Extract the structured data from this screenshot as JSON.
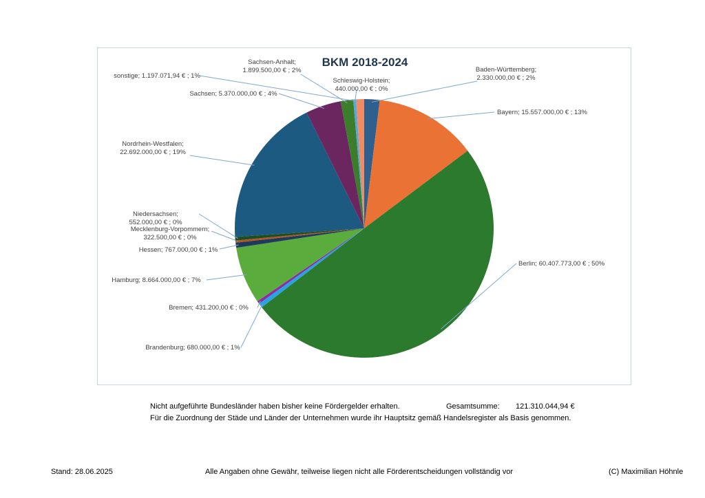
{
  "chart_data": {
    "type": "pie",
    "title": "BKM 2018-2024",
    "slices": [
      {
        "name": "Baden-Württemberg",
        "value": 2330000.0,
        "value_text": "2.330.000,00 €",
        "percent": "2%",
        "color": "#2f5f8c"
      },
      {
        "name": "Bayern",
        "value": 15557000.0,
        "value_text": "15.557.000,00 €",
        "percent": "13%",
        "color": "#ea7234"
      },
      {
        "name": "Berlin",
        "value": 60407773.0,
        "value_text": "60.407.773,00 €",
        "percent": "50%",
        "color": "#2c7a2e"
      },
      {
        "name": "Brandenburg",
        "value": 680000.0,
        "value_text": "680.000,00 €",
        "percent": "1%",
        "color": "#2ba3e0"
      },
      {
        "name": "Bremen",
        "value": 431200.0,
        "value_text": "431.200,00 €",
        "percent": "0%",
        "color": "#8e2aa6"
      },
      {
        "name": "Hamburg",
        "value": 8664000.0,
        "value_text": "8.664.000,00 €",
        "percent": "7%",
        "color": "#5aac3c"
      },
      {
        "name": "Hessen",
        "value": 767000.0,
        "value_text": "767.000,00 €",
        "percent": "1%",
        "color": "#1e3a5c"
      },
      {
        "name": "Mecklenburg-Vorpommern",
        "value": 322500.0,
        "value_text": "322.500,00 €",
        "percent": "0%",
        "color": "#b4541f"
      },
      {
        "name": "Niedersachsen",
        "value": 552000.0,
        "value_text": "552.000,00 €",
        "percent": "0%",
        "color": "#1e4e20"
      },
      {
        "name": "Nordrhein-Westfalen",
        "value": 22692000.0,
        "value_text": "22.692.000,00 €",
        "percent": "19%",
        "color": "#1d5a82"
      },
      {
        "name": "Sachsen",
        "value": 5370000.0,
        "value_text": "5.370.000,00 €",
        "percent": "4%",
        "color": "#6b2660"
      },
      {
        "name": "Sachsen-Anhalt",
        "value": 1899500.0,
        "value_text": "1.899.500,00 €",
        "percent": "2%",
        "color": "#3c7d2c"
      },
      {
        "name": "Schleswig-Holstein",
        "value": 440000.0,
        "value_text": "440.000,00 €",
        "percent": "0%",
        "color": "#5aa8d8"
      },
      {
        "name": "sonstige",
        "value": 1197071.94,
        "value_text": "1.197.071,94 €",
        "percent": "1%",
        "color": "#f28b62"
      }
    ]
  },
  "notes": {
    "line1": "Nicht aufgeführte Bundesländer haben bisher keine Fördergelder erhalten.",
    "total_label": "Gesamtsumme:",
    "total_value": "121.310.044,94 €",
    "line2": "Für die Zuordnung der Städe und Länder der Unternehmen wurde ihr Hauptsitz gemäß Handelsregister als Basis genommen."
  },
  "footer": {
    "date": "Stand: 28.06.2025",
    "disclaimer": "Alle Angaben ohne Gewähr, teilweise liegen nicht alle Förderentscheidungen vollständig vor",
    "copyright": "(C) Maximilian Höhnle"
  }
}
